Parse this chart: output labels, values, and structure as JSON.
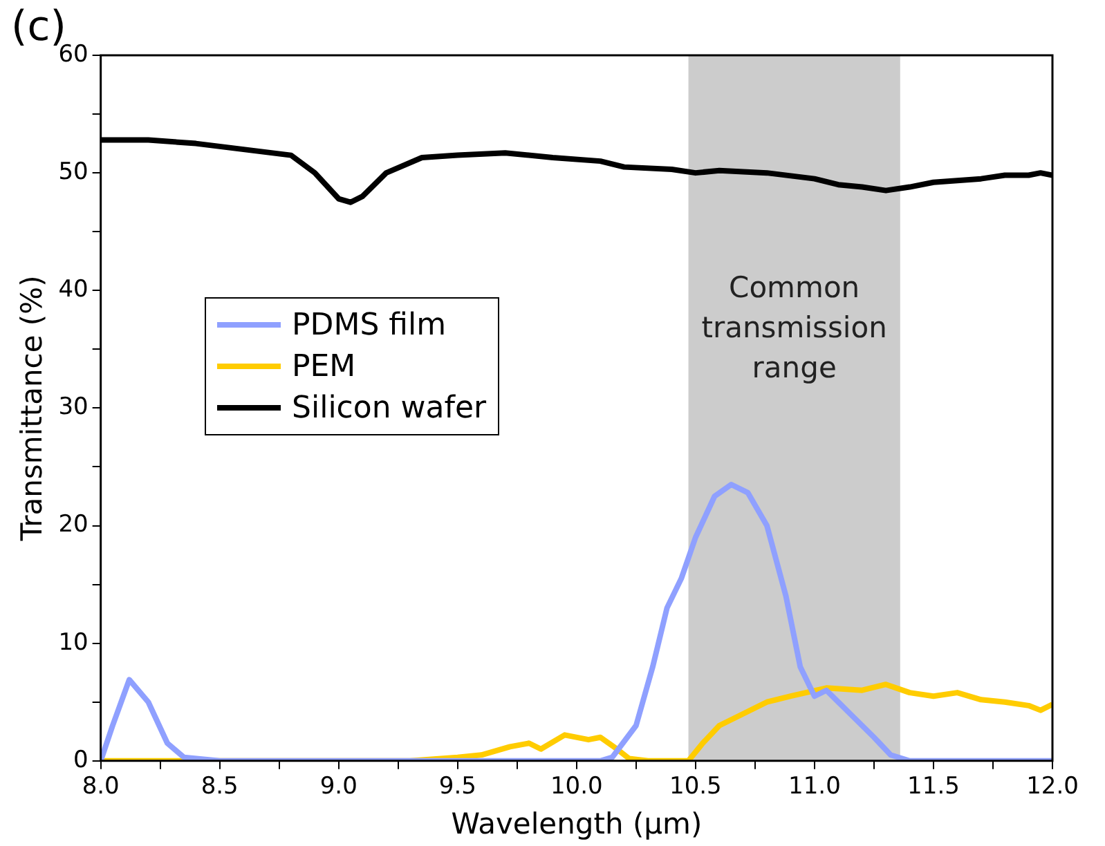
{
  "chart_data": {
    "type": "line",
    "title": "(c)",
    "xlabel": "Wavelength (µm)",
    "ylabel": "Transmittance (%)",
    "xlim": [
      8,
      12
    ],
    "ylim": [
      0,
      60
    ],
    "xticks": [
      {
        "value": 8,
        "label": "8.0"
      },
      {
        "value": 8.25,
        "label": null
      },
      {
        "value": 8.5,
        "label": "8.5"
      },
      {
        "value": 8.75,
        "label": null
      },
      {
        "value": 9,
        "label": "9.0"
      },
      {
        "value": 9.25,
        "label": null
      },
      {
        "value": 9.5,
        "label": "9.5"
      },
      {
        "value": 9.75,
        "label": null
      },
      {
        "value": 10,
        "label": "10.0"
      },
      {
        "value": 10.25,
        "label": null
      },
      {
        "value": 10.5,
        "label": "10.5"
      },
      {
        "value": 10.75,
        "label": null
      },
      {
        "value": 11,
        "label": "11.0"
      },
      {
        "value": 11.25,
        "label": null
      },
      {
        "value": 11.5,
        "label": "11.5"
      },
      {
        "value": 11.75,
        "label": null
      },
      {
        "value": 12,
        "label": "12.0"
      }
    ],
    "yticks": [
      0,
      {
        "value": 5,
        "label": null
      },
      10,
      {
        "value": 15,
        "label": null
      },
      20,
      {
        "value": 25,
        "label": null
      },
      30,
      {
        "value": 35,
        "label": null
      },
      40,
      {
        "value": 45,
        "label": null
      },
      50,
      {
        "value": 55,
        "label": null
      },
      60
    ],
    "grid": false,
    "legend": "left",
    "marker": "none",
    "line_style": "solid",
    "bands": [
      {
        "axis": "x",
        "from": 10.47,
        "to": 11.36,
        "label": "Common\ntransmission\nrange",
        "color": "#cccccc"
      }
    ],
    "series": [
      {
        "name": "PDMS film",
        "color": "#8fa0ff",
        "x": [
          8,
          8.05,
          8.12,
          8.2,
          8.28,
          8.35,
          8.5,
          9,
          9.5,
          10,
          10.1,
          10.15,
          10.25,
          10.32,
          10.38,
          10.44,
          10.5,
          10.58,
          10.65,
          10.72,
          10.8,
          10.88,
          10.94,
          11,
          11.05,
          11.15,
          11.25,
          11.32,
          11.4,
          12
        ],
        "values": [
          0,
          3,
          6.9,
          5,
          1.5,
          0.3,
          0,
          0,
          0,
          0,
          0,
          0.3,
          3,
          8,
          13,
          15.5,
          19,
          22.5,
          23.5,
          22.8,
          20,
          14,
          8,
          5.5,
          6,
          4,
          2,
          0.5,
          0,
          0
        ]
      },
      {
        "name": "PEM",
        "color": "#ffcc00",
        "x": [
          8,
          8.5,
          9,
          9.3,
          9.5,
          9.6,
          9.72,
          9.8,
          9.85,
          9.95,
          10.05,
          10.1,
          10.17,
          10.22,
          10.3,
          10.47,
          10.53,
          10.6,
          10.7,
          10.8,
          10.9,
          11.05,
          11.2,
          11.3,
          11.4,
          11.5,
          11.6,
          11.7,
          11.8,
          11.9,
          11.95,
          12
        ],
        "values": [
          0,
          0,
          0,
          0,
          0.3,
          0.5,
          1.2,
          1.5,
          1,
          2.2,
          1.8,
          2,
          1,
          0.2,
          0,
          0,
          1.5,
          3,
          4,
          5,
          5.5,
          6.2,
          6,
          6.5,
          5.8,
          5.5,
          5.8,
          5.2,
          5,
          4.7,
          4.3,
          4.8
        ]
      },
      {
        "name": "Silicon wafer",
        "color": "#000000",
        "x": [
          8,
          8.2,
          8.4,
          8.6,
          8.8,
          8.9,
          9,
          9.05,
          9.1,
          9.2,
          9.35,
          9.5,
          9.7,
          9.9,
          10.1,
          10.2,
          10.4,
          10.5,
          10.6,
          10.8,
          11,
          11.1,
          11.2,
          11.3,
          11.4,
          11.5,
          11.7,
          11.8,
          11.9,
          11.95,
          12
        ],
        "values": [
          52.8,
          52.8,
          52.5,
          52,
          51.5,
          50,
          47.8,
          47.5,
          48,
          50,
          51.3,
          51.5,
          51.7,
          51.3,
          51,
          50.5,
          50.3,
          50,
          50.2,
          50,
          49.5,
          49,
          48.8,
          48.5,
          48.8,
          49.2,
          49.5,
          49.8,
          49.8,
          50,
          49.8
        ]
      }
    ]
  }
}
